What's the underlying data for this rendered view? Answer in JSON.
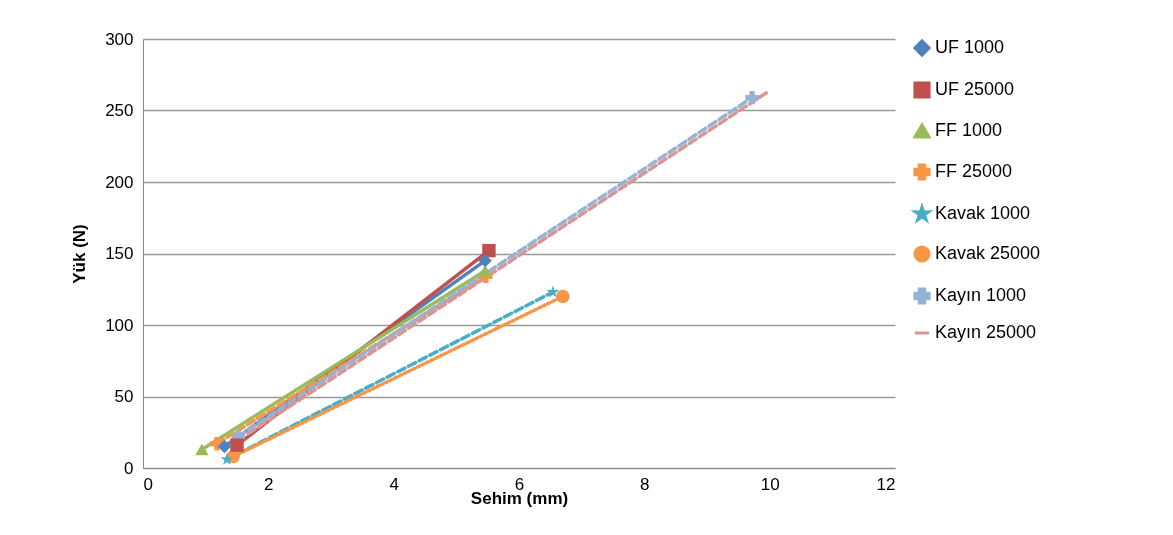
{
  "chart_data": {
    "type": "line",
    "xlabel": "Sehim (mm)",
    "ylabel": "Yük (N)",
    "xlim": [
      0,
      12
    ],
    "xticks": [
      0,
      2,
      4,
      6,
      8,
      10,
      12
    ],
    "ylim": [
      0,
      300
    ],
    "yticks": [
      0,
      50,
      100,
      150,
      200,
      250,
      300
    ],
    "grid": "y",
    "legend": "right",
    "series": [
      {
        "name": "UF 1000",
        "color": "#4f81bd",
        "marker": "diamond",
        "line_style": "solid",
        "x": [
          1.3,
          5.46
        ],
        "values": [
          15,
          145
        ]
      },
      {
        "name": "UF 25000",
        "color": "#c0504d",
        "marker": "square",
        "line_style": "solid",
        "x": [
          1.5,
          5.52
        ],
        "values": [
          16,
          152
        ]
      },
      {
        "name": "FF 1000",
        "color": "#9bbb59",
        "marker": "triangle",
        "line_style": "solid",
        "x": [
          0.94,
          5.46
        ],
        "values": [
          13,
          138
        ]
      },
      {
        "name": "FF 25000",
        "color": "#f79646",
        "marker": "cross",
        "line_style": "dashed",
        "x": [
          1.18,
          5.47
        ],
        "values": [
          17,
          134
        ]
      },
      {
        "name": "Kavak 1000",
        "color": "#4bacc6",
        "marker": "star",
        "line_style": "dashed",
        "x": [
          1.34,
          6.54
        ],
        "values": [
          6,
          123
        ]
      },
      {
        "name": "Kavak 25000",
        "color": "#f79646",
        "marker": "circle",
        "line_style": "dotted",
        "x": [
          1.44,
          6.7
        ],
        "values": [
          8,
          120
        ]
      },
      {
        "name": "Kayın 1000",
        "color": "#95b3d7",
        "marker": "cross",
        "line_style": "dashed",
        "x": [
          1.52,
          9.72
        ],
        "values": [
          22,
          259
        ]
      },
      {
        "name": "Kayın 25000",
        "color": "#d99694",
        "marker": "none",
        "line_style": "dashed",
        "x": [
          1.68,
          9.97
        ],
        "values": [
          24,
          263
        ]
      }
    ]
  }
}
